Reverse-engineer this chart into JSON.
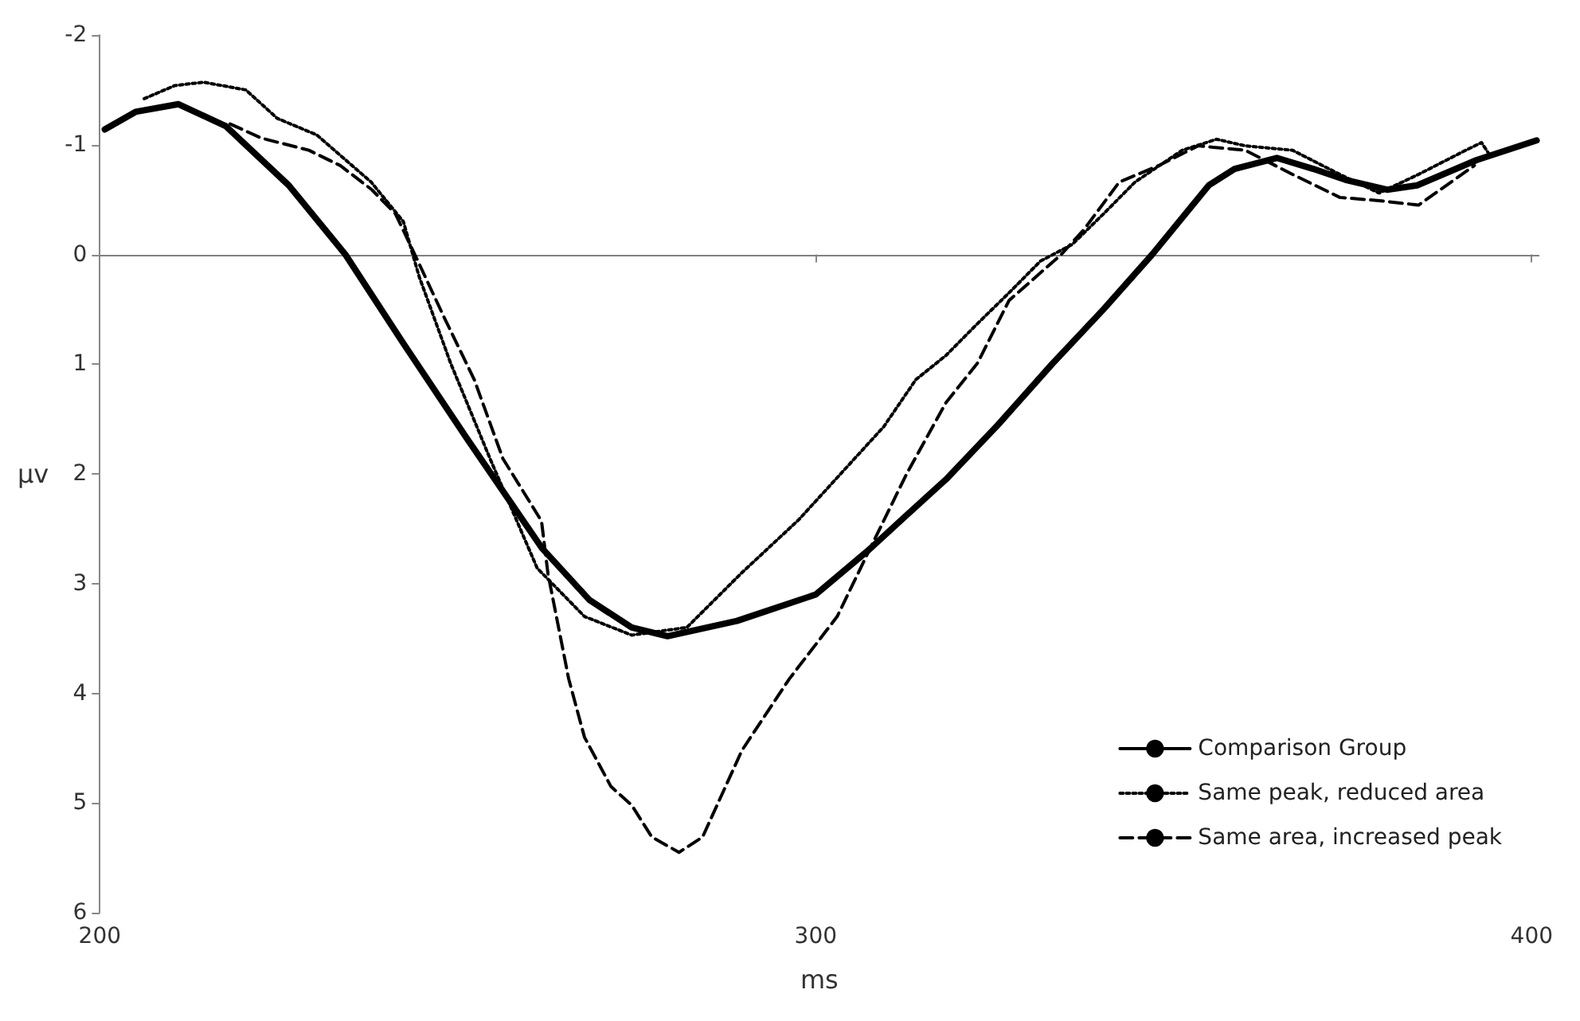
{
  "chart_data": {
    "type": "line",
    "xlabel": "ms",
    "ylabel": "μv",
    "xlim": [
      200,
      401
    ],
    "xticks": [
      200,
      300,
      400
    ],
    "ylim": [
      6,
      -2
    ],
    "yticks": [
      -2,
      -1,
      0,
      1,
      2,
      3,
      4,
      5,
      6
    ],
    "grid": false,
    "legend": "bottom right",
    "marker": "none",
    "ref_lines": [
      {
        "axis": "y",
        "value": 0,
        "color": "#808080"
      }
    ],
    "series": [
      {
        "name": "Comparison Group",
        "color": "#000000",
        "line_style": "solid",
        "x": [
          200.7,
          205,
          211,
          217.6,
          226.4,
          234.3,
          242.4,
          251.2,
          261.8,
          268.4,
          274.3,
          279.3,
          289,
          300,
          307.3,
          312.3,
          318.2,
          325.5,
          333,
          340.2,
          347,
          354.9,
          358.5,
          364.4,
          369.5,
          374,
          379.8,
          384,
          392.3,
          400.7
        ],
        "values": [
          -1.14,
          -1.3,
          -1.37,
          -1.17,
          -0.63,
          0,
          0.81,
          1.67,
          2.68,
          3.15,
          3.4,
          3.48,
          3.34,
          3.1,
          2.7,
          2.4,
          2.05,
          1.55,
          1.0,
          0.5,
          0,
          -0.63,
          -0.78,
          -0.88,
          -0.78,
          -0.68,
          -0.59,
          -0.63,
          -0.86,
          -1.04
        ]
      },
      {
        "name": "Same peak, reduced area",
        "color": "#000000",
        "line_style": "dotted",
        "x": [
          206.2,
          210.5,
          214.5,
          220.4,
          224.8,
          230.3,
          237.9,
          242.4,
          244.6,
          249,
          254.5,
          261.1,
          267.7,
          274.3,
          282,
          289.7,
          297.6,
          309.5,
          314,
          318.2,
          322.6,
          327,
          331.4,
          335.8,
          340.2,
          344.6,
          351.2,
          356,
          360,
          366.6,
          373.2,
          378.7,
          384.2,
          390.8,
          393,
          394
        ],
        "values": [
          -1.42,
          -1.54,
          -1.57,
          -1.5,
          -1.24,
          -1.09,
          -0.66,
          -0.3,
          0.2,
          0.99,
          1.86,
          2.86,
          3.3,
          3.47,
          3.4,
          2.9,
          2.42,
          1.57,
          1.14,
          0.92,
          0.63,
          0.35,
          0.06,
          -0.09,
          -0.37,
          -0.66,
          -0.95,
          -1.05,
          -0.99,
          -0.95,
          -0.73,
          -0.56,
          -0.73,
          -0.95,
          -1.02,
          -0.92
        ]
      },
      {
        "name": "Same area, increased peak",
        "color": "#000000",
        "line_style": "dashed",
        "x": [
          218.2,
          222.6,
          229.2,
          233.6,
          238,
          241.3,
          244,
          248,
          252.3,
          256.3,
          261.7,
          262.6,
          265.5,
          267.7,
          271.4,
          274.3,
          277.1,
          280.9,
          284.2,
          289.7,
          296.3,
          303,
          307.3,
          312.7,
          318.2,
          322.6,
          327,
          334.3,
          337.5,
          342.4,
          347.9,
          353.4,
          360,
          366.6,
          373.2,
          378.7,
          384.2,
          392
        ],
        "values": [
          -1.19,
          -1.06,
          -0.95,
          -0.81,
          -0.59,
          -0.37,
          0,
          0.56,
          1.14,
          1.86,
          2.43,
          2.91,
          3.87,
          4.4,
          4.85,
          5.02,
          5.31,
          5.45,
          5.31,
          4.52,
          3.87,
          3.3,
          2.72,
          2.0,
          1.35,
          0.99,
          0.42,
          0,
          -0.23,
          -0.66,
          -0.81,
          -0.99,
          -0.95,
          -0.73,
          -0.52,
          -0.49,
          -0.45,
          -0.81
        ]
      }
    ]
  }
}
